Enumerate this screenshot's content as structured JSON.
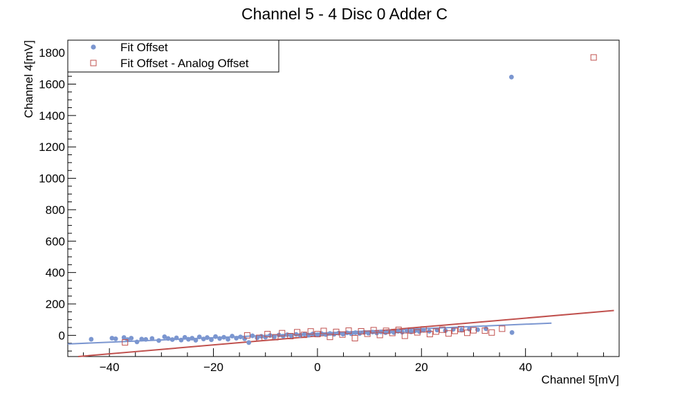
{
  "chart_data": {
    "type": "scatter",
    "title": "Channel 5 - 4 Disc 0 Adder C",
    "xlabel": "Channel 5[mV]",
    "ylabel": "Channel 4[mV]",
    "xlim": [
      -48,
      58
    ],
    "ylim": [
      -135,
      1880
    ],
    "x_ticks": [
      -40,
      -20,
      0,
      20,
      40
    ],
    "y_ticks": [
      0,
      200,
      400,
      600,
      800,
      1000,
      1200,
      1400,
      1600,
      1800
    ],
    "grid": false,
    "legend_position": "top-left",
    "series": [
      {
        "name": "Fit Offset",
        "marker": "circle",
        "color": "#7b96d0",
        "points": [
          [
            -43.5,
            -25
          ],
          [
            -39.5,
            -18
          ],
          [
            -38.8,
            -22
          ],
          [
            -37.2,
            -14
          ],
          [
            -36.5,
            -27
          ],
          [
            -35.8,
            -18
          ],
          [
            -34.7,
            -42
          ],
          [
            -33.8,
            -24
          ],
          [
            -33.0,
            -26
          ],
          [
            -31.8,
            -20
          ],
          [
            -30.5,
            -33
          ],
          [
            -29.4,
            -9
          ],
          [
            -28.7,
            -20
          ],
          [
            -27.9,
            -27
          ],
          [
            -27.1,
            -16
          ],
          [
            -26.2,
            -30
          ],
          [
            -25.5,
            -13
          ],
          [
            -24.8,
            -25
          ],
          [
            -24.1,
            -18
          ],
          [
            -23.4,
            -31
          ],
          [
            -22.7,
            -10
          ],
          [
            -21.9,
            -23
          ],
          [
            -21.2,
            -14
          ],
          [
            -20.4,
            -28
          ],
          [
            -19.6,
            -8
          ],
          [
            -18.8,
            -20
          ],
          [
            -18.0,
            -12
          ],
          [
            -17.2,
            -25
          ],
          [
            -16.4,
            -5
          ],
          [
            -15.6,
            -18
          ],
          [
            -14.8,
            -10
          ],
          [
            -14.0,
            -22
          ],
          [
            -13.2,
            -46
          ],
          [
            -12.5,
            -3
          ],
          [
            -11.6,
            -15
          ],
          [
            -10.8,
            -6
          ],
          [
            -10.0,
            -12
          ],
          [
            -9.1,
            -1
          ],
          [
            -8.3,
            -9
          ],
          [
            -7.4,
            2
          ],
          [
            -6.6,
            -5
          ],
          [
            -5.8,
            4
          ],
          [
            -5.0,
            -3
          ],
          [
            -4.1,
            6
          ],
          [
            -3.3,
            0
          ],
          [
            -2.5,
            8
          ],
          [
            -1.7,
            1
          ],
          [
            -0.9,
            9
          ],
          [
            0.0,
            3
          ],
          [
            0.8,
            11
          ],
          [
            1.6,
            5
          ],
          [
            2.4,
            12
          ],
          [
            3.2,
            7
          ],
          [
            4.1,
            14
          ],
          [
            4.9,
            8
          ],
          [
            5.7,
            16
          ],
          [
            6.5,
            10
          ],
          [
            7.3,
            17
          ],
          [
            8.1,
            12
          ],
          [
            9.0,
            19
          ],
          [
            9.8,
            14
          ],
          [
            10.6,
            21
          ],
          [
            11.4,
            15
          ],
          [
            12.2,
            22
          ],
          [
            13.1,
            17
          ],
          [
            13.9,
            24
          ],
          [
            14.7,
            18
          ],
          [
            15.5,
            26
          ],
          [
            16.3,
            20
          ],
          [
            17.2,
            28
          ],
          [
            18.0,
            22
          ],
          [
            18.8,
            30
          ],
          [
            19.6,
            24
          ],
          [
            20.4,
            32
          ],
          [
            21.5,
            26
          ],
          [
            23.0,
            34
          ],
          [
            24.6,
            30
          ],
          [
            26.1,
            38
          ],
          [
            27.7,
            33
          ],
          [
            29.2,
            40
          ],
          [
            30.8,
            36
          ],
          [
            32.4,
            42
          ],
          [
            37.4,
            18
          ],
          [
            37.3,
            1645
          ]
        ]
      },
      {
        "name": "Fit Offset - Analog Offset",
        "marker": "open-square",
        "color": "#c0504d",
        "points": [
          [
            -37.0,
            -45
          ],
          [
            -13.5,
            0
          ],
          [
            -11.2,
            -16
          ],
          [
            -9.6,
            8
          ],
          [
            -8.1,
            -12
          ],
          [
            -6.8,
            14
          ],
          [
            -5.2,
            -5
          ],
          [
            -3.9,
            20
          ],
          [
            -2.6,
            3
          ],
          [
            -1.3,
            25
          ],
          [
            0.0,
            8
          ],
          [
            1.2,
            28
          ],
          [
            2.4,
            -10
          ],
          [
            3.6,
            22
          ],
          [
            4.8,
            5
          ],
          [
            6.0,
            30
          ],
          [
            7.2,
            -18
          ],
          [
            8.4,
            26
          ],
          [
            9.6,
            10
          ],
          [
            10.8,
            33
          ],
          [
            12.0,
            2
          ],
          [
            13.2,
            29
          ],
          [
            14.4,
            15
          ],
          [
            15.6,
            35
          ],
          [
            16.8,
            -3
          ],
          [
            18.0,
            31
          ],
          [
            19.2,
            19
          ],
          [
            20.4,
            38
          ],
          [
            21.6,
            8
          ],
          [
            22.8,
            24
          ],
          [
            24.0,
            36
          ],
          [
            25.2,
            12
          ],
          [
            26.4,
            28
          ],
          [
            27.6,
            40
          ],
          [
            28.8,
            16
          ],
          [
            30.0,
            32
          ],
          [
            32.2,
            30
          ],
          [
            33.5,
            18
          ],
          [
            35.5,
            42
          ],
          [
            53.1,
            1770
          ]
        ]
      }
    ],
    "fit_lines": [
      {
        "series": "Fit Offset",
        "color": "#7b96d0",
        "x": [
          -48,
          45
        ],
        "y": [
          -55,
          78
        ]
      },
      {
        "series": "Fit Offset - Analog Offset",
        "color": "#c0504d",
        "x": [
          -46,
          57
        ],
        "y": [
          -135,
          158
        ]
      }
    ]
  }
}
